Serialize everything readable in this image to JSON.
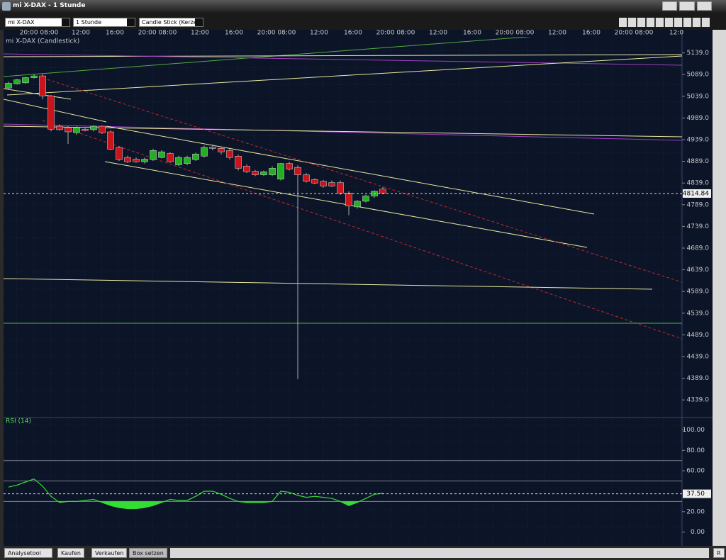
{
  "window": {
    "title": "mi X-DAX - 1 Stunde"
  },
  "toolbar": {
    "instrument": "mi X-DAX",
    "interval": "1 Stunde",
    "chart_style": "Candle Stick (Kerze"
  },
  "chart_data": [
    {
      "type": "candlestick",
      "title": "mi X-DAX (Candlestick)",
      "x_labels": [
        "20:00 08:00",
        "12:00",
        "16:00",
        "20:00 08:00",
        "12:00",
        "16:00",
        "20:00 08:00",
        "12:00",
        "16:00",
        "20:00 08:00",
        "12:00",
        "16:00",
        "20:00 08:00",
        "12:00",
        "16:00",
        "20:00 08:00",
        "12:0"
      ],
      "open": [
        5058,
        5068,
        5070,
        5082,
        5086,
        5040,
        4970,
        4967,
        4955,
        4963,
        4962,
        4970,
        4957,
        4921,
        4898,
        4894,
        4888,
        4893,
        4898,
        4907,
        4881,
        4884,
        4893,
        4901,
        4922,
        4919,
        4914,
        4901,
        4878,
        4866,
        4858,
        4858,
        4848,
        4884,
        4875,
        4858,
        4847,
        4843,
        4840,
        4840,
        4816,
        4784,
        4797,
        4809,
        4825
      ],
      "high": [
        5073,
        5079,
        5084,
        5090,
        5090,
        5042,
        4974,
        4970,
        4970,
        4968,
        4972,
        4972,
        4960,
        4924,
        4902,
        4898,
        4898,
        4918,
        4915,
        4910,
        4902,
        4902,
        4909,
        4925,
        4928,
        4923,
        4918,
        4905,
        4882,
        4869,
        4868,
        4878,
        4885,
        4888,
        4880,
        4862,
        4850,
        4846,
        4845,
        4845,
        4820,
        4800,
        4812,
        4822,
        4830
      ],
      "low": [
        5055,
        5066,
        5068,
        5080,
        5032,
        4958,
        4960,
        4929,
        4950,
        4958,
        4958,
        4952,
        4915,
        4890,
        4885,
        4886,
        4884,
        4890,
        4896,
        4886,
        4878,
        4880,
        4890,
        4898,
        4914,
        4905,
        4893,
        4868,
        4862,
        4855,
        4855,
        4855,
        4845,
        4868,
        4387,
        4840,
        4836,
        4828,
        4830,
        4812,
        4765,
        4780,
        4794,
        4805,
        4814
      ],
      "close": [
        5069,
        5077,
        5082,
        5086,
        5040,
        4963,
        4962,
        4957,
        4967,
        4960,
        4970,
        4955,
        4917,
        4893,
        4888,
        4888,
        4894,
        4914,
        4911,
        4888,
        4898,
        4898,
        4906,
        4921,
        4919,
        4911,
        4898,
        4873,
        4865,
        4858,
        4865,
        4873,
        4884,
        4871,
        4858,
        4843,
        4839,
        4832,
        4832,
        4816,
        4786,
        4797,
        4809,
        4820,
        4816
      ],
      "up_color": "#22b022",
      "down_color": "#c8141a",
      "last_price": 4814.84,
      "ylim": [
        4300,
        5176
      ],
      "yticks": [
        {
          "value": 5139,
          "label": "5139.0"
        },
        {
          "value": 5089,
          "label": "5089.0"
        },
        {
          "value": 5039,
          "label": "5039.0"
        },
        {
          "value": 4989,
          "label": "4989.0"
        },
        {
          "value": 4939,
          "label": "4939.0"
        },
        {
          "value": 4889,
          "label": "4889.0"
        },
        {
          "value": 4839,
          "label": "4839.0"
        },
        {
          "value": 4789,
          "label": "4789.0"
        },
        {
          "value": 4739,
          "label": "4739.0"
        },
        {
          "value": 4689,
          "label": "4689.0"
        },
        {
          "value": 4639,
          "label": "4639.0"
        },
        {
          "value": 4589,
          "label": "4589.0"
        },
        {
          "value": 4539,
          "label": "4539.0"
        },
        {
          "value": 4489,
          "label": "4489.0"
        },
        {
          "value": 4439,
          "label": "4439.0"
        },
        {
          "value": 4389,
          "label": "4389.0"
        },
        {
          "value": 4339,
          "label": "4339.0"
        }
      ]
    },
    {
      "type": "line",
      "title": "RSI (14)",
      "color": "#33dd33",
      "values": [
        44,
        46,
        49,
        52,
        45,
        35,
        29,
        30,
        30,
        31,
        32,
        29,
        26,
        24,
        23,
        23,
        24,
        26,
        29,
        32,
        31,
        31,
        35,
        40,
        40,
        37,
        33,
        30,
        29,
        29,
        29,
        30,
        40,
        39,
        36,
        34,
        35,
        34,
        33,
        30,
        26,
        29,
        33,
        37,
        38
      ],
      "levels": [
        70,
        50,
        30
      ],
      "last_value": {
        "value": 37.5,
        "label": "37.50"
      },
      "ylim": [
        -12,
        110
      ],
      "yticks": [
        {
          "value": 100,
          "label": "100.00"
        },
        {
          "value": 80,
          "label": "80.00"
        },
        {
          "value": 60,
          "label": "60.00"
        },
        {
          "value": 20,
          "label": "20.00"
        },
        {
          "value": 0,
          "label": "0.00"
        }
      ]
    }
  ],
  "bottom_bar": {
    "tool": "Analysetool",
    "buy": "Kaufen",
    "sell": "Verkaufen",
    "box": "Box setzen",
    "reset": "R"
  }
}
